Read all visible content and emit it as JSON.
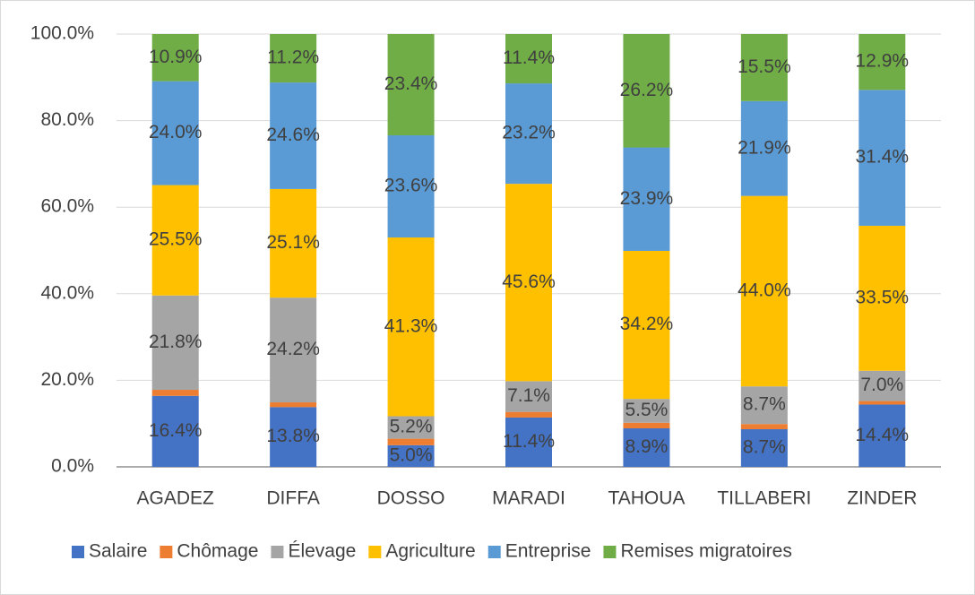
{
  "chart_data": {
    "type": "stacked_bar",
    "categories": [
      "AGADEZ",
      "DIFFA",
      "DOSSO",
      "MARADI",
      "TAHOUA",
      "TILLABERI",
      "ZINDER"
    ],
    "series": [
      {
        "name": "Salaire",
        "color": "#4472c4",
        "values": [
          16.4,
          13.8,
          5.0,
          11.4,
          8.9,
          8.7,
          14.4
        ],
        "value_labels": [
          "16.4%",
          "13.8%",
          "5.0%",
          "11.4%",
          "8.9%",
          "8.7%",
          "14.4%"
        ]
      },
      {
        "name": "Chômage",
        "color": "#ed7d31",
        "values": [
          1.4,
          1.1,
          1.5,
          1.3,
          1.3,
          1.2,
          0.8
        ]
      },
      {
        "name": "Élevage",
        "color": "#a5a5a5",
        "values": [
          21.8,
          24.2,
          5.2,
          7.1,
          5.5,
          8.7,
          7.0
        ],
        "value_labels": [
          "21.8%",
          "24.2%",
          "5.2%",
          "7.1%",
          "5.5%",
          "8.7%",
          "7.0%"
        ]
      },
      {
        "name": "Agriculture",
        "color": "#ffc000",
        "values": [
          25.5,
          25.1,
          41.3,
          45.6,
          34.2,
          44.0,
          33.5
        ],
        "value_labels": [
          "25.5%",
          "25.1%",
          "41.3%",
          "45.6%",
          "34.2%",
          "44.0%",
          "33.5%"
        ]
      },
      {
        "name": "Entreprise",
        "color": "#5b9bd5",
        "values": [
          24.0,
          24.6,
          23.6,
          23.2,
          23.9,
          21.9,
          31.4
        ],
        "value_labels": [
          "24.0%",
          "24.6%",
          "23.6%",
          "23.2%",
          "23.9%",
          "21.9%",
          "31.4%"
        ]
      },
      {
        "name": "Remises migratoires",
        "color": "#70ad47",
        "values": [
          10.9,
          11.2,
          23.4,
          11.4,
          26.2,
          15.5,
          12.9
        ],
        "value_labels": [
          "10.9%",
          "11.2%",
          "23.4%",
          "11.4%",
          "26.2%",
          "15.5%",
          "12.9%"
        ]
      }
    ],
    "ylim": [
      0,
      100
    ],
    "yticks": [
      {
        "value": 0,
        "label": "0.0%"
      },
      {
        "value": 20,
        "label": "20.0%"
      },
      {
        "value": 40,
        "label": "40.0%"
      },
      {
        "value": 60,
        "label": "60.0%"
      },
      {
        "value": 80,
        "label": "80.0%"
      },
      {
        "value": 100,
        "label": "100.0%"
      }
    ],
    "grid": true,
    "legend": "bottom"
  }
}
